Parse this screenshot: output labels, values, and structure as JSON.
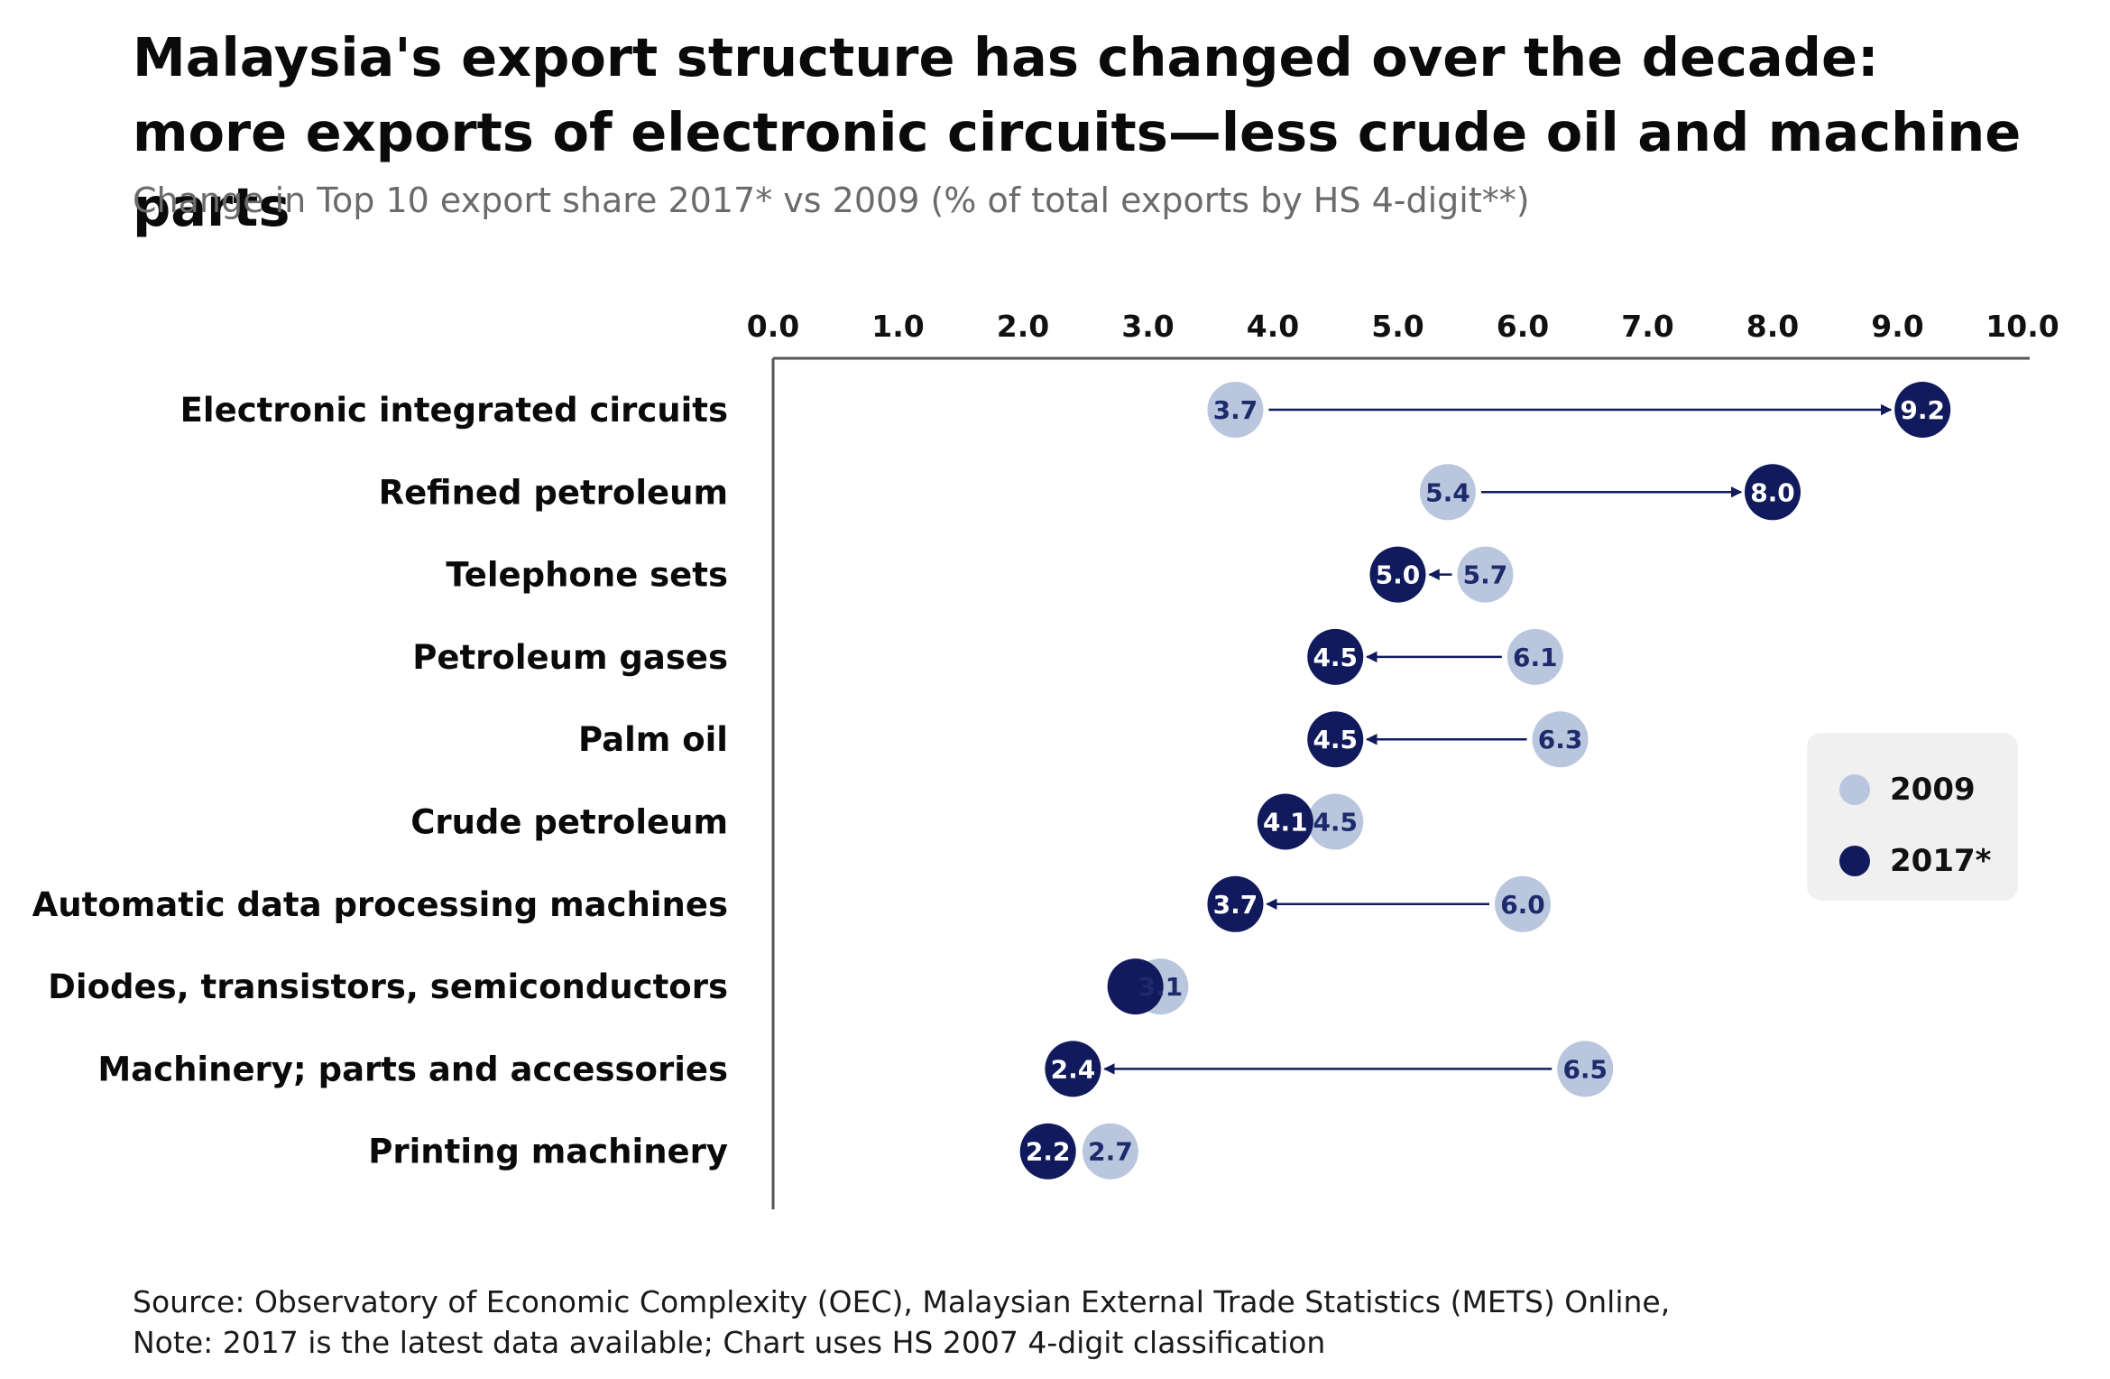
{
  "title": "Malaysia's export structure has changed over the decade: more exports of electronic circuits—less crude oil and machine parts",
  "subtitle": "Change in Top 10 export share 2017* vs 2009 (% of total exports by HS 4-digit**)",
  "footer": {
    "source": "Source: Observatory of Economic Complexity (OEC), Malaysian External Trade Statistics (METS) Online,",
    "note": "Note: 2017 is the latest data available; Chart uses HS 2007 4-digit classification"
  },
  "legend": {
    "items": [
      {
        "label": "2009",
        "color": "#b9c6dd"
      },
      {
        "label": "2017*",
        "color": "#111a5c"
      }
    ]
  },
  "colors": {
    "y2009": "#b9c6dd",
    "y2017": "#111a5c",
    "label_on_light": "#1d2a6b",
    "label_on_dark": "#ffffff",
    "axis": "#555555"
  },
  "chart_data": {
    "type": "dumbbell",
    "x_ticks": [
      "0.0",
      "1.0",
      "2.0",
      "3.0",
      "4.0",
      "5.0",
      "6.0",
      "7.0",
      "8.0",
      "9.0",
      "10.0"
    ],
    "xlim": [
      0,
      10
    ],
    "categories": [
      "Electronic integrated circuits",
      "Refined petroleum",
      "Telephone sets",
      "Petroleum gases",
      "Palm oil",
      "Crude petroleum",
      "Automatic data processing machines",
      "Diodes, transistors, semiconductors",
      "Machinery; parts and accessories",
      "Printing machinery"
    ],
    "series": [
      {
        "name": "2009",
        "values": [
          3.7,
          5.4,
          5.7,
          6.1,
          6.3,
          4.5,
          6.0,
          3.1,
          6.5,
          2.7
        ],
        "labels": [
          "3.7",
          "5.4",
          "5.7",
          "6.1",
          "6.3",
          "4.5",
          "6.0",
          "3.1",
          "6.5",
          "2.7"
        ]
      },
      {
        "name": "2017*",
        "values": [
          9.2,
          8.0,
          5.0,
          4.5,
          4.5,
          4.1,
          3.7,
          2.9,
          2.4,
          2.2
        ],
        "labels": [
          "9.2",
          "8.0",
          "5.0",
          "4.5",
          "4.5",
          "4.1",
          "3.7",
          "",
          "2.4",
          "2.2"
        ]
      }
    ],
    "legend_position": "right",
    "grid": false
  }
}
